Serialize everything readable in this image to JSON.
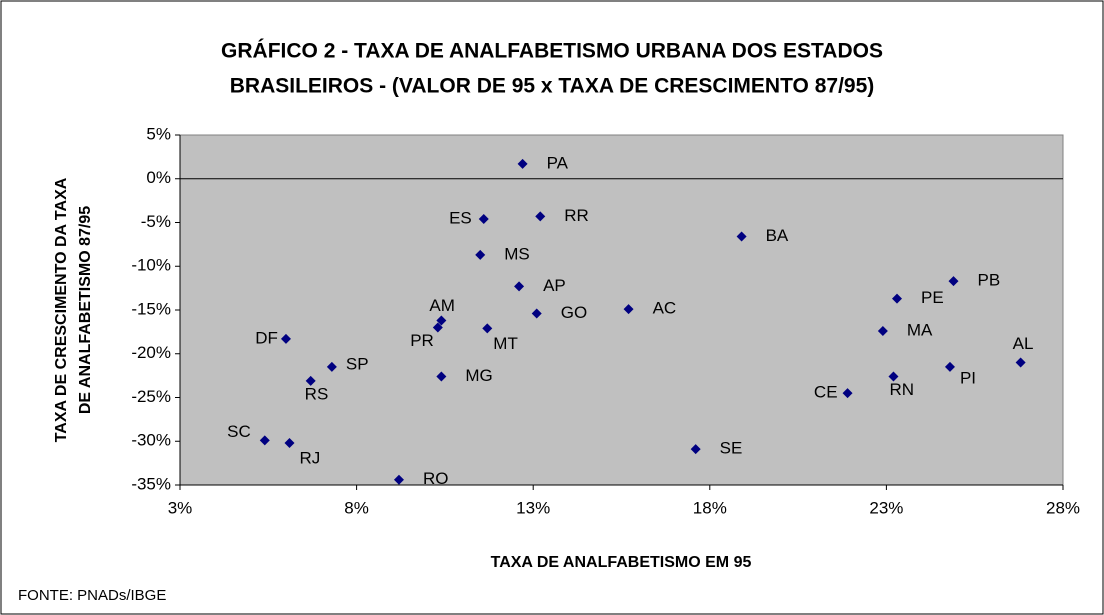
{
  "chart_data": {
    "type": "scatter",
    "title": [
      "GRÁFICO 2 - TAXA DE ANALFABETISMO URBANA DOS ESTADOS",
      "BRASILEIROS -  (VALOR DE 95 x TAXA DE CRESCIMENTO 87/95)"
    ],
    "x_label": "TAXA DE ANALFABETISMO EM 95",
    "y_label": [
      "TAXA DE CRESCIMENTO DA TAXA",
      "DE ANALFABETISMO 87/95"
    ],
    "source": "FONTE: PNADs/IBGE",
    "color": "#000080",
    "labels": [
      "PA",
      "ES",
      "RR",
      "BA",
      "MS",
      "AP",
      "PB",
      "PE",
      "AC",
      "GO",
      "AM",
      "PR",
      "MT",
      "MA",
      "DF",
      "AL",
      "SP",
      "PI",
      "MG",
      "RN",
      "RS",
      "CE",
      "SC",
      "RJ",
      "SE",
      "RO"
    ],
    "x": [
      12.7,
      11.6,
      13.2,
      18.9,
      11.5,
      12.6,
      24.9,
      23.3,
      15.7,
      13.1,
      10.4,
      10.3,
      11.7,
      22.9,
      6.0,
      26.8,
      7.3,
      24.8,
      10.4,
      23.2,
      6.7,
      21.9,
      5.4,
      6.1,
      17.6,
      9.2
    ],
    "y": [
      1.7,
      -4.6,
      -4.3,
      -6.6,
      -8.7,
      -12.3,
      -11.7,
      -13.7,
      -14.9,
      -15.4,
      -16.2,
      -17.0,
      -17.1,
      -17.4,
      -18.3,
      -21.0,
      -21.5,
      -21.5,
      -22.6,
      -22.6,
      -23.1,
      -24.5,
      -29.9,
      -30.2,
      -30.9,
      -34.4
    ],
    "xlim": [
      3,
      28
    ],
    "xticks": [
      {
        "value": 3,
        "label": "3%"
      },
      {
        "value": 8,
        "label": "8%"
      },
      {
        "value": 13,
        "label": "13%"
      },
      {
        "value": 18,
        "label": "18%"
      },
      {
        "value": 23,
        "label": "23%"
      },
      {
        "value": 28,
        "label": "28%"
      }
    ],
    "ylim": [
      -35,
      5
    ],
    "yticks": [
      {
        "value": 5,
        "label": "5%"
      },
      {
        "value": 0,
        "label": "0%"
      },
      {
        "value": -5,
        "label": "-5%"
      },
      {
        "value": -10,
        "label": "-10%"
      },
      {
        "value": -15,
        "label": "-15%"
      },
      {
        "value": -20,
        "label": "-20%"
      },
      {
        "value": -25,
        "label": "-25%"
      },
      {
        "value": -30,
        "label": "-30%"
      },
      {
        "value": -35,
        "label": "-35%"
      }
    ]
  }
}
